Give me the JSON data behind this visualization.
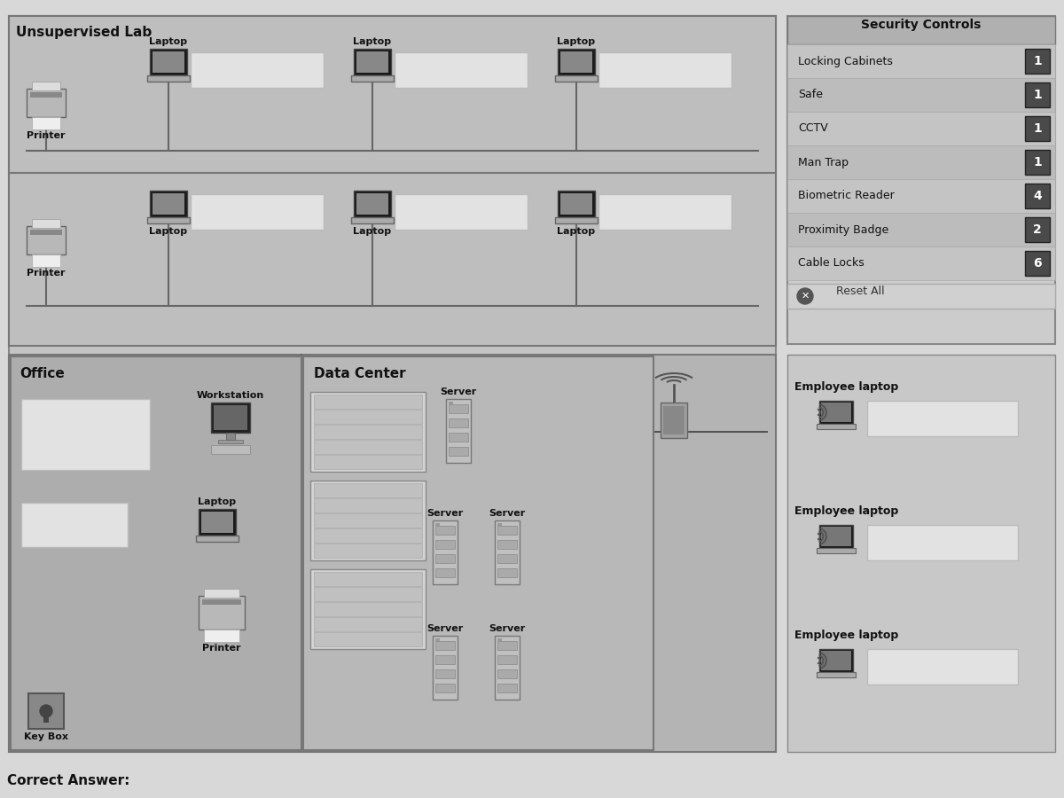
{
  "title_unsupervised": "Unsupervised Lab",
  "title_security": "Security Controls",
  "security_items": [
    {
      "label": "Locking Cabinets",
      "value": "1"
    },
    {
      "label": "Safe",
      "value": "1"
    },
    {
      "label": "CCTV",
      "value": "1"
    },
    {
      "label": "Man Trap",
      "value": "1"
    },
    {
      "label": "Biometric Reader",
      "value": "4"
    },
    {
      "label": "Proximity Badge",
      "value": "2"
    },
    {
      "label": "Cable Locks",
      "value": "6"
    }
  ],
  "correct_answer_label": "Correct Answer:",
  "office_label": "Office",
  "datacenter_label": "Data Center",
  "bg_outer": "#d8d8d8",
  "bg_main": "#c4c4c4",
  "bg_lab": "#bebebe",
  "bg_security": "#cccccc",
  "bg_security_header": "#b0b0b0",
  "bg_bottom": "#b4b4b4",
  "bg_office": "#adadad",
  "bg_datacenter": "#b8b8b8",
  "bg_emp": "#c8c8c8",
  "badge_bg": "#4a4a4a",
  "input_box_color": "#e2e2e2",
  "line_color": "#888888",
  "dark_device": "#333333",
  "med_device": "#999999"
}
